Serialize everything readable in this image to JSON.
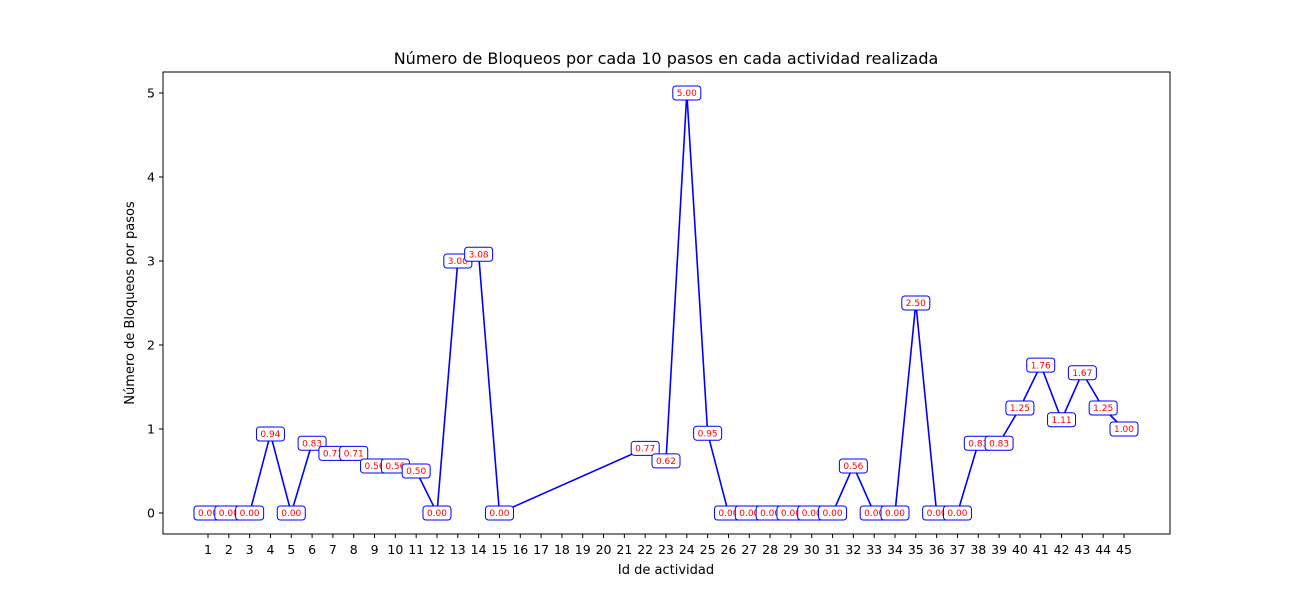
{
  "chart_data": {
    "type": "line",
    "title": "Número de Bloqueos por cada 10 pasos en cada actividad realizada",
    "xlabel": "Id de actividad",
    "ylabel": "Número de Bloqueos por pasos",
    "categories": [
      "1",
      "2",
      "3",
      "4",
      "5",
      "6",
      "7",
      "8",
      "9",
      "10",
      "11",
      "12",
      "13",
      "14",
      "15",
      "16",
      "17",
      "18",
      "19",
      "20",
      "21",
      "22",
      "23",
      "24",
      "25",
      "26",
      "27",
      "28",
      "29",
      "30",
      "31",
      "32",
      "33",
      "34",
      "35",
      "36",
      "37",
      "38",
      "39",
      "40",
      "41",
      "42",
      "43",
      "44",
      "45"
    ],
    "yticks": [
      0,
      1,
      2,
      3,
      4,
      5
    ],
    "ylim": [
      -0.25,
      5.25
    ],
    "grid": false,
    "line_color": "#0000ff",
    "label_color": "#ff0000",
    "points": [
      {
        "x": "1",
        "y": 0.0,
        "label": "0.00"
      },
      {
        "x": "2",
        "y": 0.0,
        "label": "0.00"
      },
      {
        "x": "3",
        "y": 0.0,
        "label": "0.00"
      },
      {
        "x": "4",
        "y": 0.94,
        "label": "0.94"
      },
      {
        "x": "5",
        "y": 0.0,
        "label": "0.00"
      },
      {
        "x": "6",
        "y": 0.83,
        "label": "0.83"
      },
      {
        "x": "7",
        "y": 0.71,
        "label": "0.71"
      },
      {
        "x": "8",
        "y": 0.71,
        "label": "0.71"
      },
      {
        "x": "9",
        "y": 0.56,
        "label": "0.56"
      },
      {
        "x": "10",
        "y": 0.56,
        "label": "0.56"
      },
      {
        "x": "11",
        "y": 0.5,
        "label": "0.50"
      },
      {
        "x": "12",
        "y": 0.0,
        "label": "0.00"
      },
      {
        "x": "13",
        "y": 3.0,
        "label": "3.00"
      },
      {
        "x": "14",
        "y": 3.08,
        "label": "3.08"
      },
      {
        "x": "15",
        "y": 0.0,
        "label": "0.00"
      },
      {
        "x": "22",
        "y": 0.77,
        "label": "0.77"
      },
      {
        "x": "23",
        "y": 0.62,
        "label": "0.62"
      },
      {
        "x": "24",
        "y": 5.0,
        "label": "5.00"
      },
      {
        "x": "25",
        "y": 0.95,
        "label": "0.95"
      },
      {
        "x": "26",
        "y": 0.0,
        "label": "0.00"
      },
      {
        "x": "27",
        "y": 0.0,
        "label": "0.00"
      },
      {
        "x": "28",
        "y": 0.0,
        "label": "0.00"
      },
      {
        "x": "29",
        "y": 0.0,
        "label": "0.00"
      },
      {
        "x": "30",
        "y": 0.0,
        "label": "0.00"
      },
      {
        "x": "31",
        "y": 0.0,
        "label": "0.00"
      },
      {
        "x": "32",
        "y": 0.56,
        "label": "0.56"
      },
      {
        "x": "33",
        "y": 0.0,
        "label": "0.00"
      },
      {
        "x": "34",
        "y": 0.0,
        "label": "0.00"
      },
      {
        "x": "35",
        "y": 2.5,
        "label": "2.50"
      },
      {
        "x": "36",
        "y": 0.0,
        "label": "0.00"
      },
      {
        "x": "37",
        "y": 0.0,
        "label": "0.00"
      },
      {
        "x": "38",
        "y": 0.83,
        "label": "0.83"
      },
      {
        "x": "39",
        "y": 0.83,
        "label": "0.83"
      },
      {
        "x": "40",
        "y": 1.25,
        "label": "1.25"
      },
      {
        "x": "41",
        "y": 1.76,
        "label": "1.76"
      },
      {
        "x": "42",
        "y": 1.11,
        "label": "1.11"
      },
      {
        "x": "43",
        "y": 1.67,
        "label": "1.67"
      },
      {
        "x": "44",
        "y": 1.25,
        "label": "1.25"
      },
      {
        "x": "45",
        "y": 1.0,
        "label": "1.00"
      }
    ]
  }
}
